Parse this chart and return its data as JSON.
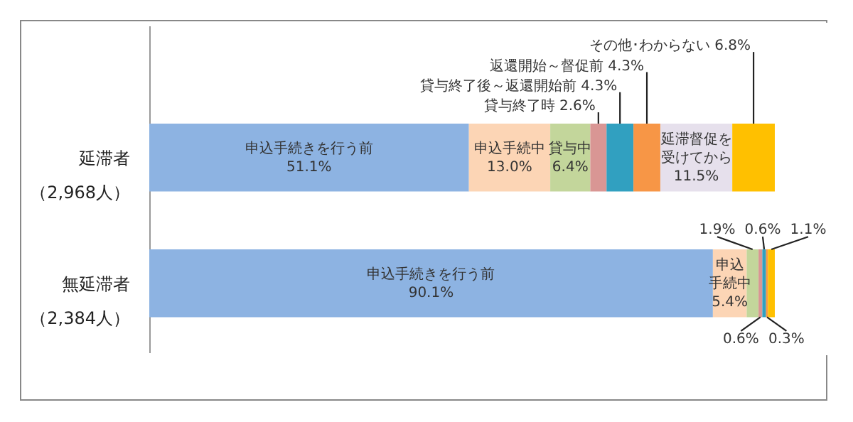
{
  "chart_data": {
    "type": "bar",
    "orientation": "horizontal",
    "stacked": true,
    "tick_labels": "y",
    "xlim": [
      0,
      100
    ],
    "categories": [
      "延滞者（2,968人）",
      "無延滞者（2,384人）"
    ],
    "annotations": [
      "申込手続きを行う前",
      "申込手続中"
    ],
    "series": [
      {
        "name": "申込手続きを行う前",
        "color": "#8db3e2",
        "values": [
          51.1,
          90.1
        ],
        "value_labels": [
          "51.1%",
          "90.1%"
        ]
      },
      {
        "name": "申込手続中",
        "color": "#fcd5b5",
        "values": [
          13.0,
          5.4
        ],
        "value_labels": [
          "13.0%",
          "5.4%"
        ]
      },
      {
        "name": "貸与中",
        "color": "#c3d69b",
        "values": [
          6.4,
          1.9
        ],
        "value_labels": [
          "6.4%",
          "1.9%"
        ]
      },
      {
        "name": "貸与終了時",
        "color": "#d99694",
        "values": [
          2.6,
          0.6
        ],
        "value_labels": [
          "2.6%",
          "0.6%"
        ]
      },
      {
        "name": "貸与終了後～返還開始前",
        "color": "#31a0c0",
        "values": [
          4.3,
          0.6
        ],
        "value_labels": [
          "4.3%",
          "0.6%"
        ]
      },
      {
        "name": "返還開始～督促前",
        "color": "#f79646",
        "values": [
          4.3,
          0.3
        ],
        "value_labels": [
          "4.3%",
          "0.3%"
        ]
      },
      {
        "name": "延滞督促を受けてから",
        "color": "#e6e0ec",
        "values": [
          11.5,
          null
        ],
        "value_labels": [
          "11.5%",
          null
        ]
      },
      {
        "name": "その他･わからない",
        "color": "#ffc000",
        "values": [
          6.8,
          1.1
        ],
        "value_labels": [
          "6.8%",
          "1.1%"
        ]
      }
    ]
  }
}
